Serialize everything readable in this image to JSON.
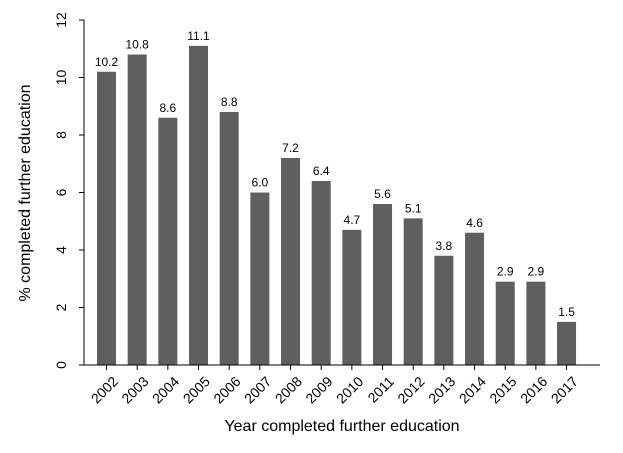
{
  "chart_data": {
    "type": "bar",
    "title": "",
    "xlabel": "Year completed further education",
    "ylabel": "% completed further education",
    "categories": [
      "2002",
      "2003",
      "2004",
      "2005",
      "2006",
      "2007",
      "2008",
      "2009",
      "2010",
      "2011",
      "2012",
      "2013",
      "2014",
      "2015",
      "2016",
      "2017"
    ],
    "values": [
      10.2,
      10.8,
      8.6,
      11.1,
      8.8,
      6.0,
      7.2,
      6.4,
      4.7,
      5.6,
      5.1,
      3.8,
      4.6,
      2.9,
      2.9,
      1.5
    ],
    "value_labels": [
      "10.2",
      "10.8",
      "8.6",
      "11.1",
      "8.8",
      "6.0",
      "7.2",
      "6.4",
      "4.7",
      "5.6",
      "5.1",
      "3.8",
      "4.6",
      "2.9",
      "2.9",
      "1.5"
    ],
    "ylim": [
      0,
      12
    ],
    "yticks": [
      0,
      2,
      4,
      6,
      8,
      10,
      12
    ],
    "grid": false,
    "legend": "none",
    "colors": {
      "bar": "#5f5f5f"
    }
  }
}
